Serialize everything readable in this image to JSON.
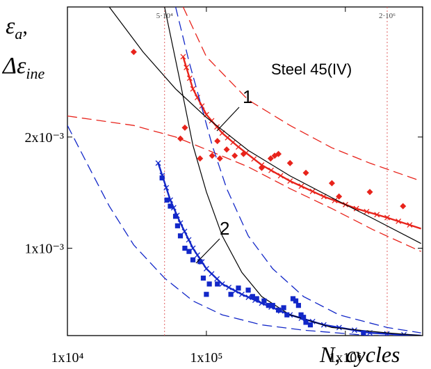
{
  "chart_data": {
    "type": "scatter",
    "title": "Steel 45(IV)",
    "x_scale": "log",
    "y_scale": "log",
    "xlim": [
      10000,
      3600000
    ],
    "ylim": [
      0.00058,
      0.0045
    ],
    "x_ticks": [
      {
        "value": 10000,
        "label": "1x10⁴"
      },
      {
        "value": 100000,
        "label": "1x10⁵"
      },
      {
        "value": 1000000,
        "label": "1x10⁶"
      }
    ],
    "y_ticks": [
      {
        "value": 0.001,
        "label": "1x10⁻³"
      },
      {
        "value": 0.002,
        "label": "2x10⁻³"
      }
    ],
    "xlabel_italic": "N",
    "xlabel_rest": ", cycles",
    "ylabel_line1": "ε",
    "ylabel_line1_sub": "a",
    "ylabel_line1_suffix": ",",
    "ylabel_line2": "Δε",
    "ylabel_line2_sub": "ine",
    "reference_lines": [
      {
        "x": 50000,
        "label": "5·10⁴"
      },
      {
        "x": 2000000,
        "label": "2·10⁶"
      }
    ],
    "curve_labels": [
      {
        "text": "1",
        "series": "εa"
      },
      {
        "text": "2",
        "series": "Δεine"
      }
    ],
    "colors": {
      "series1": "#e8231b",
      "series2": "#1227c8",
      "fit_black": "#000000",
      "ref_line": "#e06060"
    },
    "series": [
      {
        "key": "s1_points",
        "marker": "diamond",
        "color": "#e8231b",
        "points": [
          [
            30000,
            0.0034
          ],
          [
            65000,
            0.00198
          ],
          [
            70000,
            0.00212
          ],
          [
            90000,
            0.00175
          ],
          [
            110000,
            0.00178
          ],
          [
            120000,
            0.00195
          ],
          [
            125000,
            0.00175
          ],
          [
            140000,
            0.00185
          ],
          [
            160000,
            0.00178
          ],
          [
            185000,
            0.0018
          ],
          [
            250000,
            0.00165
          ],
          [
            290000,
            0.00175
          ],
          [
            310000,
            0.00178
          ],
          [
            330000,
            0.0018
          ],
          [
            400000,
            0.0017
          ],
          [
            520000,
            0.0016
          ],
          [
            800000,
            0.0015
          ],
          [
            900000,
            0.00138
          ],
          [
            1500000,
            0.00142
          ],
          [
            2600000,
            0.0013
          ]
        ]
      },
      {
        "key": "s2_points",
        "marker": "square",
        "color": "#1227c8",
        "points": [
          [
            48000,
            0.00155
          ],
          [
            52000,
            0.00135
          ],
          [
            55000,
            0.0013
          ],
          [
            60000,
            0.00122
          ],
          [
            62000,
            0.00115
          ],
          [
            65000,
            0.00108
          ],
          [
            70000,
            0.001
          ],
          [
            75000,
            0.00098
          ],
          [
            80000,
            0.00093
          ],
          [
            90000,
            0.00092
          ],
          [
            95000,
            0.00083
          ],
          [
            105000,
            0.0008
          ],
          [
            100000,
            0.00075
          ],
          [
            120000,
            0.0008
          ],
          [
            150000,
            0.00075
          ],
          [
            170000,
            0.00078
          ],
          [
            200000,
            0.00077
          ],
          [
            215000,
            0.00074
          ],
          [
            230000,
            0.00073
          ],
          [
            260000,
            0.00072
          ],
          [
            280000,
            0.0007
          ],
          [
            300000,
            0.0007
          ],
          [
            330000,
            0.00068
          ],
          [
            360000,
            0.00069
          ],
          [
            380000,
            0.00066
          ],
          [
            420000,
            0.00073
          ],
          [
            440000,
            0.00072
          ],
          [
            460000,
            0.0007
          ],
          [
            480000,
            0.00066
          ],
          [
            500000,
            0.00065
          ],
          [
            520000,
            0.00063
          ],
          [
            560000,
            0.00062
          ],
          [
            1350000,
            0.00059
          ]
        ]
      }
    ],
    "fits": [
      {
        "key": "red_fit",
        "color": "#e8231b",
        "style": "solid-x",
        "x_range": [
          68000,
          3500000
        ],
        "y_at": [
          0.0033,
          0.00108
        ],
        "points": [
          [
            68000,
            0.0033
          ],
          [
            80000,
            0.0027
          ],
          [
            100000,
            0.0023
          ],
          [
            130000,
            0.00205
          ],
          [
            170000,
            0.00188
          ],
          [
            250000,
            0.00168
          ],
          [
            400000,
            0.00152
          ],
          [
            700000,
            0.00138
          ],
          [
            1200000,
            0.00128
          ],
          [
            2000000,
            0.00121
          ],
          [
            3500000,
            0.00113
          ]
        ]
      },
      {
        "key": "red_band_upper",
        "color": "#e8231b",
        "style": "dashed",
        "points": [
          [
            68000,
            0.0045
          ],
          [
            100000,
            0.0033
          ],
          [
            200000,
            0.00252
          ],
          [
            400000,
            0.00215
          ],
          [
            800000,
            0.00187
          ],
          [
            1500000,
            0.0017
          ],
          [
            3500000,
            0.00152
          ]
        ]
      },
      {
        "key": "red_band_lower",
        "color": "#e8231b",
        "style": "dashed",
        "points": [
          [
            10000,
            0.00228
          ],
          [
            30000,
            0.00215
          ],
          [
            60000,
            0.002
          ],
          [
            100000,
            0.00185
          ],
          [
            200000,
            0.00166
          ],
          [
            400000,
            0.00145
          ],
          [
            800000,
            0.00128
          ],
          [
            1600000,
            0.00112
          ],
          [
            3500000,
            0.00098
          ]
        ]
      },
      {
        "key": "blue_fit",
        "color": "#1227c8",
        "style": "solid-x",
        "points": [
          [
            45000,
            0.0017
          ],
          [
            55000,
            0.00135
          ],
          [
            65000,
            0.00117
          ],
          [
            80000,
            0.001
          ],
          [
            100000,
            0.00088
          ],
          [
            130000,
            0.0008
          ],
          [
            180000,
            0.00075
          ],
          [
            250000,
            0.00071
          ],
          [
            400000,
            0.00066
          ],
          [
            700000,
            0.00062
          ],
          [
            1500000,
            0.00059
          ],
          [
            3500000,
            0.00058
          ]
        ]
      },
      {
        "key": "blue_band_upper",
        "color": "#1227c8",
        "style": "dashed",
        "points": [
          [
            60000,
            0.0045
          ],
          [
            75000,
            0.0032
          ],
          [
            90000,
            0.0025
          ],
          [
            110000,
            0.0019
          ],
          [
            140000,
            0.00145
          ],
          [
            200000,
            0.00108
          ],
          [
            300000,
            0.00088
          ],
          [
            500000,
            0.00074
          ],
          [
            900000,
            0.00066
          ],
          [
            2000000,
            0.00061
          ],
          [
            3500000,
            0.00059
          ]
        ]
      },
      {
        "key": "blue_band_lower",
        "color": "#1227c8",
        "style": "dashed",
        "points": [
          [
            10000,
            0.00215
          ],
          [
            15000,
            0.0016
          ],
          [
            20000,
            0.0013
          ],
          [
            30000,
            0.00102
          ],
          [
            50000,
            0.00083
          ],
          [
            80000,
            0.00072
          ],
          [
            130000,
            0.00066
          ],
          [
            250000,
            0.00062
          ],
          [
            500000,
            0.0006
          ],
          [
            1500000,
            0.00058
          ],
          [
            3500000,
            0.00058
          ]
        ]
      },
      {
        "key": "black_1",
        "color": "#000000",
        "style": "solid",
        "points": [
          [
            20000,
            0.0045
          ],
          [
            35000,
            0.0034
          ],
          [
            60000,
            0.0027
          ],
          [
            100000,
            0.00226
          ],
          [
            200000,
            0.00184
          ],
          [
            400000,
            0.00157
          ],
          [
            800000,
            0.00137
          ],
          [
            1600000,
            0.0012
          ],
          [
            3500000,
            0.00103
          ]
        ]
      },
      {
        "key": "black_2",
        "color": "#000000",
        "style": "solid",
        "points": [
          [
            50000,
            0.0045
          ],
          [
            65000,
            0.0028
          ],
          [
            80000,
            0.0019
          ],
          [
            100000,
            0.00142
          ],
          [
            130000,
            0.00108
          ],
          [
            180000,
            0.00086
          ],
          [
            250000,
            0.00074
          ],
          [
            400000,
            0.00066
          ],
          [
            800000,
            0.00061
          ],
          [
            2000000,
            0.00059
          ],
          [
            3500000,
            0.00058
          ]
        ]
      }
    ]
  }
}
